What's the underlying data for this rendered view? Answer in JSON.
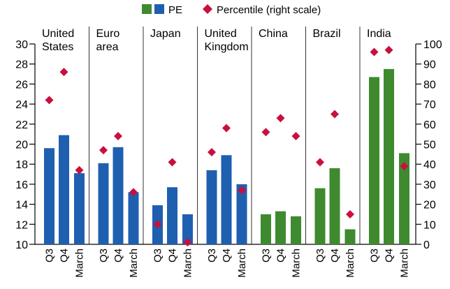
{
  "legend": {
    "pe_label": "PE",
    "percentile_label": "Percentile (right scale)",
    "position": "top-center"
  },
  "colors": {
    "advanced_bar": "#1f5fb0",
    "emerging_bar": "#3f8a2f",
    "marker": "#c8103e"
  },
  "chart_data": {
    "type": "bar",
    "left_axis": {
      "ylim": [
        10,
        30
      ],
      "ticks": [
        "10",
        "12",
        "14",
        "16",
        "18",
        "20",
        "22",
        "24",
        "26",
        "28",
        "30"
      ]
    },
    "right_axis": {
      "ylim": [
        0,
        100
      ],
      "ticks": [
        "0",
        "10",
        "20",
        "30",
        "40",
        "50",
        "60",
        "70",
        "80",
        "90",
        "100"
      ]
    },
    "grid": false,
    "groups": [
      {
        "name": "United States",
        "label_lines": [
          "United",
          "States"
        ],
        "bar_color": "advanced",
        "categories": [
          "Q3",
          "Q4",
          "March"
        ],
        "pe": [
          19.6,
          20.9,
          17.1
        ],
        "percentile": [
          72,
          86,
          37
        ]
      },
      {
        "name": "Euro area",
        "label_lines": [
          "Euro",
          "area"
        ],
        "bar_color": "advanced",
        "categories": [
          "Q3",
          "Q4",
          "March"
        ],
        "pe": [
          18.1,
          19.7,
          15.2
        ],
        "percentile": [
          47,
          54,
          26
        ]
      },
      {
        "name": "Japan",
        "label_lines": [
          "Japan"
        ],
        "bar_color": "advanced",
        "categories": [
          "Q3",
          "Q4",
          "March"
        ],
        "pe": [
          13.9,
          15.7,
          13.0
        ],
        "percentile": [
          10,
          41,
          1
        ]
      },
      {
        "name": "United Kingdom",
        "label_lines": [
          "United",
          "Kingdom"
        ],
        "bar_color": "advanced",
        "categories": [
          "Q3",
          "Q4",
          "March"
        ],
        "pe": [
          17.4,
          18.9,
          16.0
        ],
        "percentile": [
          46,
          58,
          27
        ]
      },
      {
        "name": "China",
        "label_lines": [
          "China"
        ],
        "bar_color": "emerging",
        "categories": [
          "Q3",
          "Q4",
          "March"
        ],
        "pe": [
          13.0,
          13.3,
          12.8
        ],
        "percentile": [
          56,
          63,
          54
        ]
      },
      {
        "name": "Brazil",
        "label_lines": [
          "Brazil"
        ],
        "bar_color": "emerging",
        "categories": [
          "Q3",
          "Q4",
          "March"
        ],
        "pe": [
          15.6,
          17.6,
          11.5
        ],
        "percentile": [
          41,
          65,
          15
        ]
      },
      {
        "name": "India",
        "label_lines": [
          "India"
        ],
        "bar_color": "emerging",
        "categories": [
          "Q3",
          "Q4",
          "March"
        ],
        "pe": [
          26.7,
          27.5,
          19.1
        ],
        "percentile": [
          96,
          97,
          39
        ]
      }
    ]
  }
}
